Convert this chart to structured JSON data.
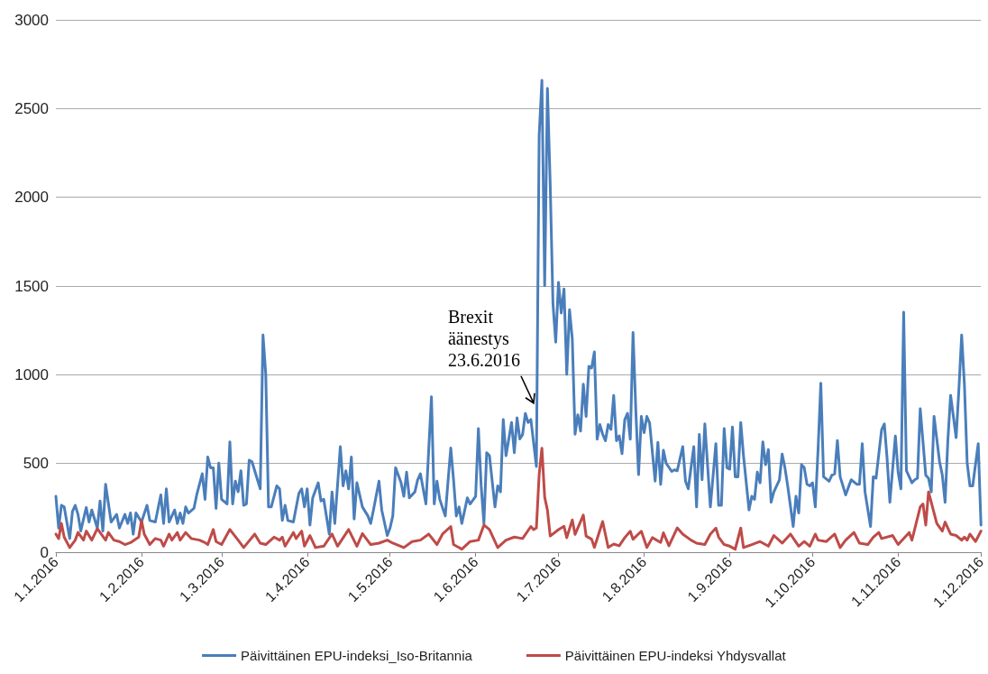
{
  "chart_data": {
    "type": "line",
    "xlim": [
      "2016-01-01",
      "2016-12-01"
    ],
    "xticks": [
      {
        "value": "2016-01-01",
        "label": "1.1.2016"
      },
      {
        "value": "2016-02-01",
        "label": "1.2.2016"
      },
      {
        "value": "2016-03-01",
        "label": "1.3.2016"
      },
      {
        "value": "2016-04-01",
        "label": "1.4.2016"
      },
      {
        "value": "2016-05-01",
        "label": "1.5.2016"
      },
      {
        "value": "2016-06-01",
        "label": "1.6.2016"
      },
      {
        "value": "2016-07-01",
        "label": "1.7.2016"
      },
      {
        "value": "2016-08-01",
        "label": "1.8.2016"
      },
      {
        "value": "2016-09-01",
        "label": "1.9.2016"
      },
      {
        "value": "2016-10-01",
        "label": "1.10.2016"
      },
      {
        "value": "2016-11-01",
        "label": "1.11.2016"
      },
      {
        "value": "2016-12-01",
        "label": "1.12.2016"
      }
    ],
    "ylim": [
      0,
      3000
    ],
    "yticks": [
      0,
      500,
      1000,
      1500,
      2000,
      2500,
      3000
    ],
    "grid": "y",
    "legend": "bottom",
    "marker": "none",
    "line_style": "solid",
    "annotations": [
      {
        "text": "Brexit äänestys 23.6.2016",
        "x": "2016-06-22",
        "y": 830
      }
    ],
    "series": [
      {
        "name": "Päivittäinen EPU-indeksi_Iso-Britannia",
        "color": "#4a7ebb",
        "x": [
          "2016-01-01",
          "2016-01-02",
          "2016-01-03",
          "2016-01-04",
          "2016-01-06",
          "2016-01-07",
          "2016-01-08",
          "2016-01-09",
          "2016-01-10",
          "2016-01-12",
          "2016-01-13",
          "2016-01-14",
          "2016-01-16",
          "2016-01-17",
          "2016-01-18",
          "2016-01-19",
          "2016-01-21",
          "2016-01-23",
          "2016-01-24",
          "2016-01-26",
          "2016-01-27",
          "2016-01-28",
          "2016-01-29",
          "2016-01-30",
          "2016-02-01",
          "2016-02-03",
          "2016-02-04",
          "2016-02-06",
          "2016-02-08",
          "2016-02-09",
          "2016-02-10",
          "2016-02-11",
          "2016-02-13",
          "2016-02-14",
          "2016-02-15",
          "2016-02-16",
          "2016-02-17",
          "2016-02-18",
          "2016-02-20",
          "2016-02-21",
          "2016-02-23",
          "2016-02-24",
          "2016-02-25",
          "2016-02-26",
          "2016-02-27",
          "2016-02-28",
          "2016-02-29",
          "2016-03-01",
          "2016-03-03",
          "2016-03-04",
          "2016-03-05",
          "2016-03-06",
          "2016-03-07",
          "2016-03-08",
          "2016-03-09",
          "2016-03-10",
          "2016-03-11",
          "2016-03-12",
          "2016-03-14",
          "2016-03-15",
          "2016-03-16",
          "2016-03-17",
          "2016-03-18",
          "2016-03-19",
          "2016-03-21",
          "2016-03-22",
          "2016-03-23",
          "2016-03-24",
          "2016-03-25",
          "2016-03-27",
          "2016-03-29",
          "2016-03-30",
          "2016-03-31",
          "2016-04-01",
          "2016-04-02",
          "2016-04-03",
          "2016-04-05",
          "2016-04-06",
          "2016-04-07",
          "2016-04-09",
          "2016-04-10",
          "2016-04-11",
          "2016-04-13",
          "2016-04-14",
          "2016-04-15",
          "2016-04-16",
          "2016-04-17",
          "2016-04-18",
          "2016-04-19",
          "2016-04-21",
          "2016-04-23",
          "2016-04-24",
          "2016-04-25",
          "2016-04-27",
          "2016-04-28",
          "2016-04-30",
          "2016-05-01",
          "2016-05-02",
          "2016-05-03",
          "2016-05-05",
          "2016-05-06",
          "2016-05-07",
          "2016-05-08",
          "2016-05-10",
          "2016-05-11",
          "2016-05-12",
          "2016-05-14",
          "2016-05-16",
          "2016-05-17",
          "2016-05-18",
          "2016-05-19",
          "2016-05-21",
          "2016-05-22",
          "2016-05-23",
          "2016-05-24",
          "2016-05-25",
          "2016-05-26",
          "2016-05-27",
          "2016-05-29",
          "2016-05-30",
          "2016-06-01",
          "2016-06-02",
          "2016-06-03",
          "2016-06-04",
          "2016-06-05",
          "2016-06-06",
          "2016-06-08",
          "2016-06-09",
          "2016-06-10",
          "2016-06-11",
          "2016-06-12",
          "2016-06-14",
          "2016-06-15",
          "2016-06-16",
          "2016-06-17",
          "2016-06-18",
          "2016-06-19",
          "2016-06-20",
          "2016-06-21",
          "2016-06-23",
          "2016-06-24",
          "2016-06-25",
          "2016-06-26",
          "2016-06-27",
          "2016-06-28",
          "2016-06-29",
          "2016-06-30",
          "2016-07-01",
          "2016-07-02",
          "2016-07-03",
          "2016-07-04",
          "2016-07-05",
          "2016-07-06",
          "2016-07-07",
          "2016-07-08",
          "2016-07-09",
          "2016-07-10",
          "2016-07-11",
          "2016-07-12",
          "2016-07-13",
          "2016-07-14",
          "2016-07-15",
          "2016-07-16",
          "2016-07-17",
          "2016-07-18",
          "2016-07-19",
          "2016-07-20",
          "2016-07-21",
          "2016-07-22",
          "2016-07-23",
          "2016-07-24",
          "2016-07-25",
          "2016-07-26",
          "2016-07-27",
          "2016-07-28",
          "2016-07-29",
          "2016-07-30",
          "2016-07-31",
          "2016-08-01",
          "2016-08-02",
          "2016-08-03",
          "2016-08-05",
          "2016-08-06",
          "2016-08-07",
          "2016-08-08",
          "2016-08-09",
          "2016-08-11",
          "2016-08-12",
          "2016-08-13",
          "2016-08-15",
          "2016-08-16",
          "2016-08-17",
          "2016-08-19",
          "2016-08-20",
          "2016-08-21",
          "2016-08-22",
          "2016-08-23",
          "2016-08-25",
          "2016-08-27",
          "2016-08-28",
          "2016-08-29",
          "2016-08-30",
          "2016-08-31",
          "2016-09-01",
          "2016-09-02",
          "2016-09-03",
          "2016-09-04",
          "2016-09-05",
          "2016-09-06",
          "2016-09-08",
          "2016-09-09",
          "2016-09-10",
          "2016-09-11",
          "2016-09-12",
          "2016-09-13",
          "2016-09-14",
          "2016-09-15",
          "2016-09-16",
          "2016-09-17",
          "2016-09-19",
          "2016-09-20",
          "2016-09-21",
          "2016-09-22",
          "2016-09-24",
          "2016-09-25",
          "2016-09-26",
          "2016-09-27",
          "2016-09-28",
          "2016-09-29",
          "2016-09-30",
          "2016-10-01",
          "2016-10-02",
          "2016-10-03",
          "2016-10-04",
          "2016-10-05",
          "2016-10-07",
          "2016-10-08",
          "2016-10-09",
          "2016-10-10",
          "2016-10-11",
          "2016-10-13",
          "2016-10-14",
          "2016-10-15",
          "2016-10-17",
          "2016-10-18",
          "2016-10-19",
          "2016-10-20",
          "2016-10-22",
          "2016-10-23",
          "2016-10-24",
          "2016-10-26",
          "2016-10-27",
          "2016-10-28",
          "2016-10-29",
          "2016-10-30",
          "2016-10-31",
          "2016-11-01",
          "2016-11-02",
          "2016-11-03",
          "2016-11-04",
          "2016-11-06",
          "2016-11-07",
          "2016-11-08",
          "2016-11-09",
          "2016-11-11",
          "2016-11-12",
          "2016-11-13",
          "2016-11-14",
          "2016-11-16",
          "2016-11-17",
          "2016-11-18",
          "2016-11-19",
          "2016-11-20",
          "2016-11-22",
          "2016-11-23",
          "2016-11-24",
          "2016-11-25",
          "2016-11-26",
          "2016-11-27",
          "2016-11-28",
          "2016-11-30",
          "2016-12-01"
        ],
        "values": [
          315,
          136,
          264,
          255,
          77,
          230,
          264,
          213,
          119,
          252,
          170,
          238,
          136,
          289,
          119,
          383,
          170,
          213,
          136,
          213,
          162,
          221,
          102,
          221,
          170,
          264,
          179,
          170,
          323,
          162,
          357,
          170,
          238,
          162,
          221,
          162,
          255,
          221,
          247,
          323,
          442,
          298,
          536,
          476,
          476,
          247,
          502,
          298,
          272,
          621,
          272,
          400,
          340,
          459,
          264,
          272,
          519,
          510,
          408,
          357,
          1224,
          1003,
          255,
          255,
          374,
          357,
          179,
          264,
          179,
          170,
          332,
          357,
          255,
          357,
          153,
          306,
          391,
          289,
          298,
          102,
          340,
          162,
          595,
          374,
          459,
          357,
          536,
          187,
          391,
          255,
          204,
          162,
          238,
          400,
          238,
          94,
          136,
          204,
          476,
          391,
          315,
          451,
          306,
          340,
          408,
          442,
          272,
          876,
          272,
          400,
          298,
          204,
          400,
          587,
          408,
          204,
          255,
          162,
          306,
          272,
          315,
          697,
          374,
          162,
          561,
          544,
          255,
          374,
          340,
          748,
          544,
          731,
          561,
          757,
          638,
          663,
          782,
          731,
          748,
          483,
          2349,
          2659,
          1502,
          2613,
          2076,
          1402,
          1184,
          1520,
          1348,
          1484,
          1002,
          1366,
          1202,
          665,
          774,
          683,
          947,
          765,
          1047,
          1038,
          1129,
          637,
          719,
          665,
          628,
          719,
          692,
          883,
          628,
          656,
          555,
          747,
          783,
          637,
          1238,
          801,
          437,
          765,
          674,
          765,
          728,
          401,
          619,
          382,
          574,
          501,
          455,
          464,
          459,
          595,
          400,
          357,
          595,
          255,
          663,
          408,
          723,
          255,
          612,
          264,
          264,
          697,
          476,
          468,
          706,
          425,
          425,
          731,
          544,
          238,
          315,
          298,
          451,
          391,
          621,
          493,
          578,
          281,
          340,
          408,
          553,
          476,
          374,
          145,
          315,
          221,
          493,
          476,
          383,
          374,
          391,
          255,
          578,
          952,
          425,
          400,
          434,
          442,
          629,
          425,
          323,
          366,
          408,
          383,
          383,
          612,
          340,
          145,
          425,
          417,
          689,
          723,
          527,
          281,
          468,
          655,
          451,
          357,
          1352,
          459,
          391,
          408,
          417,
          808,
          434,
          417,
          340,
          765,
          510,
          434,
          281,
          629,
          884,
          646,
          918,
          1224,
          944,
          502,
          374,
          374,
          612,
          153
        ]
      },
      {
        "name": "Päivittäinen EPU-indeksi Yhdysvallat",
        "color": "#be4b48",
        "x": [
          "2016-01-01",
          "2016-01-02",
          "2016-01-03",
          "2016-01-04",
          "2016-01-06",
          "2016-01-08",
          "2016-01-09",
          "2016-01-11",
          "2016-01-12",
          "2016-01-14",
          "2016-01-16",
          "2016-01-17",
          "2016-01-19",
          "2016-01-20",
          "2016-01-22",
          "2016-01-24",
          "2016-01-26",
          "2016-01-28",
          "2016-01-31",
          "2016-02-01",
          "2016-02-02",
          "2016-02-04",
          "2016-02-06",
          "2016-02-08",
          "2016-02-09",
          "2016-02-11",
          "2016-02-12",
          "2016-02-14",
          "2016-02-15",
          "2016-02-17",
          "2016-02-19",
          "2016-02-22",
          "2016-02-24",
          "2016-02-25",
          "2016-02-27",
          "2016-02-28",
          "2016-03-01",
          "2016-03-04",
          "2016-03-07",
          "2016-03-09",
          "2016-03-13",
          "2016-03-15",
          "2016-03-17",
          "2016-03-20",
          "2016-03-22",
          "2016-03-23",
          "2016-03-24",
          "2016-03-27",
          "2016-03-28",
          "2016-03-30",
          "2016-03-31",
          "2016-04-02",
          "2016-04-04",
          "2016-04-07",
          "2016-04-10",
          "2016-04-12",
          "2016-04-16",
          "2016-04-19",
          "2016-04-21",
          "2016-04-24",
          "2016-04-27",
          "2016-04-30",
          "2016-05-02",
          "2016-05-06",
          "2016-05-09",
          "2016-05-12",
          "2016-05-15",
          "2016-05-18",
          "2016-05-20",
          "2016-05-23",
          "2016-05-24",
          "2016-05-27",
          "2016-05-30",
          "2016-06-02",
          "2016-06-04",
          "2016-06-06",
          "2016-06-09",
          "2016-06-12",
          "2016-06-15",
          "2016-06-18",
          "2016-06-21",
          "2016-06-22",
          "2016-06-23",
          "2016-06-24",
          "2016-06-25",
          "2016-06-26",
          "2016-06-27",
          "2016-06-28",
          "2016-07-01",
          "2016-07-03",
          "2016-07-04",
          "2016-07-06",
          "2016-07-07",
          "2016-07-10",
          "2016-07-11",
          "2016-07-13",
          "2016-07-14",
          "2016-07-17",
          "2016-07-19",
          "2016-07-21",
          "2016-07-23",
          "2016-07-25",
          "2016-07-27",
          "2016-07-28",
          "2016-07-31",
          "2016-08-02",
          "2016-08-04",
          "2016-08-07",
          "2016-08-08",
          "2016-08-10",
          "2016-08-13",
          "2016-08-15",
          "2016-08-18",
          "2016-08-20",
          "2016-08-23",
          "2016-08-25",
          "2016-08-27",
          "2016-08-28",
          "2016-08-30",
          "2016-09-01",
          "2016-09-03",
          "2016-09-05",
          "2016-09-06",
          "2016-09-09",
          "2016-09-12",
          "2016-09-15",
          "2016-09-17",
          "2016-09-20",
          "2016-09-23",
          "2016-09-26",
          "2016-09-28",
          "2016-09-30",
          "2016-10-02",
          "2016-10-03",
          "2016-10-06",
          "2016-10-09",
          "2016-10-11",
          "2016-10-13",
          "2016-10-16",
          "2016-10-18",
          "2016-10-21",
          "2016-10-23",
          "2016-10-25",
          "2016-10-26",
          "2016-10-30",
          "2016-11-01",
          "2016-11-05",
          "2016-11-06",
          "2016-11-09",
          "2016-11-10",
          "2016-11-11",
          "2016-11-12",
          "2016-11-15",
          "2016-11-17",
          "2016-11-18",
          "2016-11-20",
          "2016-11-22",
          "2016-11-24",
          "2016-11-25",
          "2016-11-26",
          "2016-11-27",
          "2016-11-29",
          "2016-12-01"
        ],
        "values": [
          102,
          77,
          162,
          85,
          26,
          68,
          111,
          68,
          119,
          68,
          133,
          111,
          68,
          111,
          68,
          60,
          43,
          54,
          85,
          179,
          102,
          43,
          77,
          68,
          34,
          102,
          68,
          111,
          68,
          111,
          77,
          68,
          54,
          43,
          128,
          60,
          43,
          128,
          68,
          26,
          102,
          51,
          43,
          85,
          68,
          85,
          34,
          111,
          77,
          119,
          34,
          94,
          26,
          34,
          102,
          34,
          128,
          34,
          105,
          43,
          51,
          68,
          51,
          26,
          60,
          68,
          102,
          43,
          102,
          145,
          43,
          17,
          60,
          68,
          153,
          128,
          26,
          68,
          85,
          77,
          145,
          127,
          137,
          437,
          586,
          310,
          237,
          91,
          127,
          146,
          82,
          182,
          100,
          209,
          91,
          73,
          27,
          173,
          27,
          46,
          36,
          82,
          118,
          73,
          118,
          27,
          82,
          55,
          109,
          36,
          137,
          102,
          68,
          51,
          43,
          102,
          136,
          85,
          43,
          34,
          17,
          136,
          26,
          43,
          60,
          34,
          94,
          51,
          102,
          34,
          60,
          34,
          102,
          68,
          60,
          102,
          26,
          68,
          111,
          51,
          43,
          85,
          111,
          77,
          94,
          43,
          111,
          68,
          255,
          272,
          153,
          340,
          162,
          119,
          170,
          102,
          94,
          68,
          85,
          68,
          102,
          60,
          119
        ]
      }
    ]
  }
}
